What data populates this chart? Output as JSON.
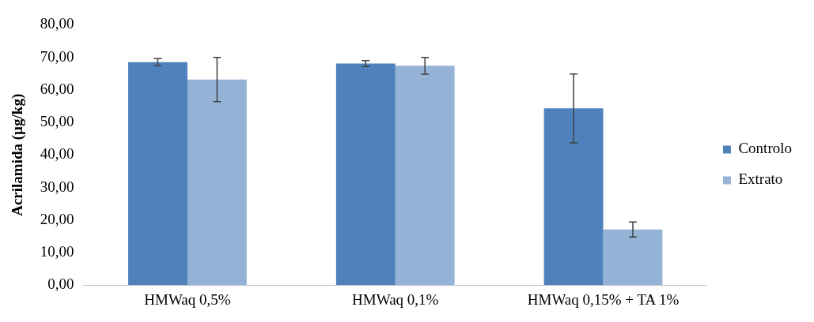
{
  "chart_data": {
    "type": "bar",
    "ylabel": "Acrilamida (µg/kg)",
    "categories": [
      "HMWaq 0,5%",
      "HMWaq 0,1%",
      "HMWaq 0,15% + TA 1%"
    ],
    "series": [
      {
        "name": "Controlo",
        "color": "#4f81bd",
        "values": [
          68.5,
          68.1,
          54.3
        ],
        "errors": [
          1.1,
          0.9,
          10.6
        ]
      },
      {
        "name": "Extrato",
        "color": "#95b3d7",
        "values": [
          63.2,
          67.4,
          17.1
        ],
        "errors": [
          6.8,
          2.6,
          2.3
        ]
      }
    ],
    "ylim": [
      0,
      80
    ],
    "yticks": [
      {
        "value": 0,
        "label": "0,00"
      },
      {
        "value": 10,
        "label": "10,00"
      },
      {
        "value": 20,
        "label": "20,00"
      },
      {
        "value": 30,
        "label": "30,00"
      },
      {
        "value": 40,
        "label": "40,00"
      },
      {
        "value": 50,
        "label": "50,00"
      },
      {
        "value": 60,
        "label": "60,00"
      },
      {
        "value": 70,
        "label": "70,00"
      },
      {
        "value": 80,
        "label": "80,00"
      }
    ],
    "grid": false,
    "legend": "right"
  }
}
